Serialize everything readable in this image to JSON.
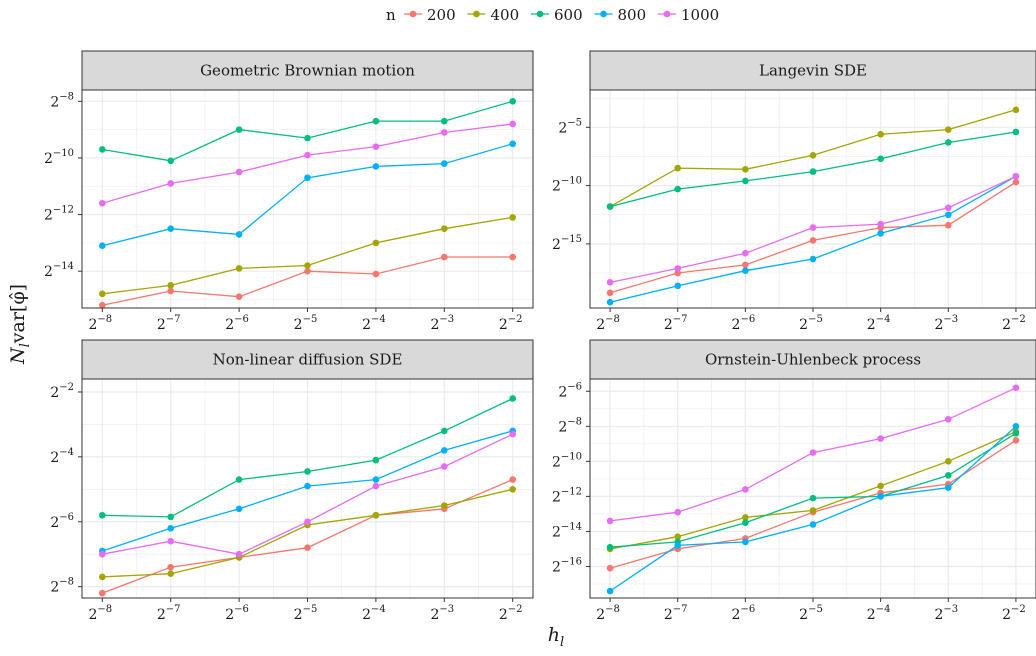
{
  "colors": {
    "200": "#F8766D",
    "400": "#A3A500",
    "600": "#00BF7D",
    "800": "#00B0F6",
    "1000": "#E76BF3",
    "strip_bg": "#D9D9D9",
    "grid": "#EBEBEB",
    "panel_border": "#333333"
  },
  "legend": {
    "title": "n",
    "entries": [
      "200",
      "400",
      "600",
      "800",
      "1000"
    ],
    "placement": "top"
  },
  "axes": {
    "xlabel": "h",
    "xlabel_sub": "l",
    "ylabel": "N",
    "ylabel_sub": "l",
    "ylabel_rest": "var[φ̂]"
  },
  "chart_data": [
    {
      "type": "line",
      "title": "Geometric Brownian motion",
      "x_log2": [
        -8,
        -7,
        -6,
        -5,
        -4,
        -3,
        -2
      ],
      "x_tick_labels": [
        "2^-8",
        "2^-7",
        "2^-6",
        "2^-5",
        "2^-4",
        "2^-3",
        "2^-2"
      ],
      "y_scale": "log2",
      "ylim_log2": [
        -15.3,
        -7.6
      ],
      "y_ticks_log2": [
        -14,
        -12,
        -10,
        -8
      ],
      "y_tick_labels": [
        "2^-14",
        "2^-12",
        "2^-10",
        "2^-8"
      ],
      "series": [
        {
          "name": "200",
          "log2_values": [
            -15.2,
            -14.7,
            -14.9,
            -14.0,
            -14.1,
            -13.5,
            -13.5
          ]
        },
        {
          "name": "400",
          "log2_values": [
            -14.8,
            -14.5,
            -13.9,
            -13.8,
            -13.0,
            -12.5,
            -12.1
          ]
        },
        {
          "name": "600",
          "log2_values": [
            -9.7,
            -10.1,
            -9.0,
            -9.3,
            -8.7,
            -8.7,
            -8.0
          ]
        },
        {
          "name": "800",
          "log2_values": [
            -13.1,
            -12.5,
            -12.7,
            -10.7,
            -10.3,
            -10.2,
            -9.5
          ]
        },
        {
          "name": "1000",
          "log2_values": [
            -11.6,
            -10.9,
            -10.5,
            -9.9,
            -9.6,
            -9.1,
            -8.8
          ]
        }
      ],
      "grid": true
    },
    {
      "type": "line",
      "title": "Langevin SDE",
      "x_log2": [
        -8,
        -7,
        -6,
        -5,
        -4,
        -3,
        -2
      ],
      "x_tick_labels": [
        "2^-8",
        "2^-7",
        "2^-6",
        "2^-5",
        "2^-4",
        "2^-3",
        "2^-2"
      ],
      "y_scale": "log2",
      "ylim_log2": [
        -20.5,
        -1.8
      ],
      "y_ticks_log2": [
        -15,
        -10,
        -5
      ],
      "y_tick_labels": [
        "2^-15",
        "2^-10",
        "2^-5"
      ],
      "series": [
        {
          "name": "200",
          "log2_values": [
            -19.2,
            -17.5,
            -16.8,
            -14.7,
            -13.6,
            -13.4,
            -9.7
          ]
        },
        {
          "name": "400",
          "log2_values": [
            -11.8,
            -8.5,
            -8.6,
            -7.4,
            -5.6,
            -5.2,
            -3.5
          ]
        },
        {
          "name": "600",
          "log2_values": [
            -11.8,
            -10.3,
            -9.6,
            -8.8,
            -7.7,
            -6.3,
            -5.4
          ]
        },
        {
          "name": "800",
          "log2_values": [
            -20.0,
            -18.6,
            -17.3,
            -16.3,
            -14.1,
            -12.5,
            -9.2
          ]
        },
        {
          "name": "1000",
          "log2_values": [
            -18.3,
            -17.1,
            -15.8,
            -13.6,
            -13.3,
            -11.9,
            -9.2
          ]
        }
      ],
      "grid": true
    },
    {
      "type": "line",
      "title": "Non-linear diffusion SDE",
      "x_log2": [
        -8,
        -7,
        -6,
        -5,
        -4,
        -3,
        -2
      ],
      "x_tick_labels": [
        "2^-8",
        "2^-7",
        "2^-6",
        "2^-5",
        "2^-4",
        "2^-3",
        "2^-2"
      ],
      "y_scale": "log2",
      "ylim_log2": [
        -8.35,
        -1.6
      ],
      "y_ticks_log2": [
        -8,
        -6,
        -4,
        -2
      ],
      "y_tick_labels": [
        "2^-8",
        "2^-6",
        "2^-4",
        "2^-2"
      ],
      "series": [
        {
          "name": "200",
          "log2_values": [
            -8.2,
            -7.4,
            -7.1,
            -6.8,
            -5.8,
            -5.6,
            -4.7
          ]
        },
        {
          "name": "400",
          "log2_values": [
            -7.7,
            -7.6,
            -7.1,
            -6.1,
            -5.8,
            -5.5,
            -5.0
          ]
        },
        {
          "name": "600",
          "log2_values": [
            -5.8,
            -5.85,
            -4.7,
            -4.45,
            -4.1,
            -3.2,
            -2.2
          ]
        },
        {
          "name": "800",
          "log2_values": [
            -6.9,
            -6.2,
            -5.6,
            -4.9,
            -4.7,
            -3.8,
            -3.2
          ]
        },
        {
          "name": "1000",
          "log2_values": [
            -7.0,
            -6.6,
            -7.0,
            -6.0,
            -4.9,
            -4.3,
            -3.3
          ]
        }
      ],
      "grid": true
    },
    {
      "type": "line",
      "title": "Ornstein-Uhlenbeck process",
      "x_log2": [
        -8,
        -7,
        -6,
        -5,
        -4,
        -3,
        -2
      ],
      "x_tick_labels": [
        "2^-8",
        "2^-7",
        "2^-6",
        "2^-5",
        "2^-4",
        "2^-3",
        "2^-2"
      ],
      "y_scale": "log2",
      "ylim_log2": [
        -17.8,
        -5.3
      ],
      "y_ticks_log2": [
        -16,
        -14,
        -12,
        -10,
        -8,
        -6
      ],
      "y_tick_labels": [
        "2^-16",
        "2^-14",
        "2^-12",
        "2^-10",
        "2^-8",
        "2^-6"
      ],
      "series": [
        {
          "name": "200",
          "log2_values": [
            -16.1,
            -15.0,
            -14.4,
            -12.9,
            -11.8,
            -11.3,
            -8.8
          ]
        },
        {
          "name": "400",
          "log2_values": [
            -15.0,
            -14.3,
            -13.2,
            -12.8,
            -11.4,
            -10.0,
            -8.3
          ]
        },
        {
          "name": "600",
          "log2_values": [
            -14.9,
            -14.6,
            -13.5,
            -12.1,
            -12.0,
            -10.8,
            -8.4
          ]
        },
        {
          "name": "800",
          "log2_values": [
            -17.4,
            -14.8,
            -14.6,
            -13.6,
            -12.0,
            -11.5,
            -8.0
          ]
        },
        {
          "name": "1000",
          "log2_values": [
            -13.4,
            -12.9,
            -11.6,
            -9.5,
            -8.7,
            -7.6,
            -5.8
          ]
        }
      ],
      "grid": true
    }
  ]
}
